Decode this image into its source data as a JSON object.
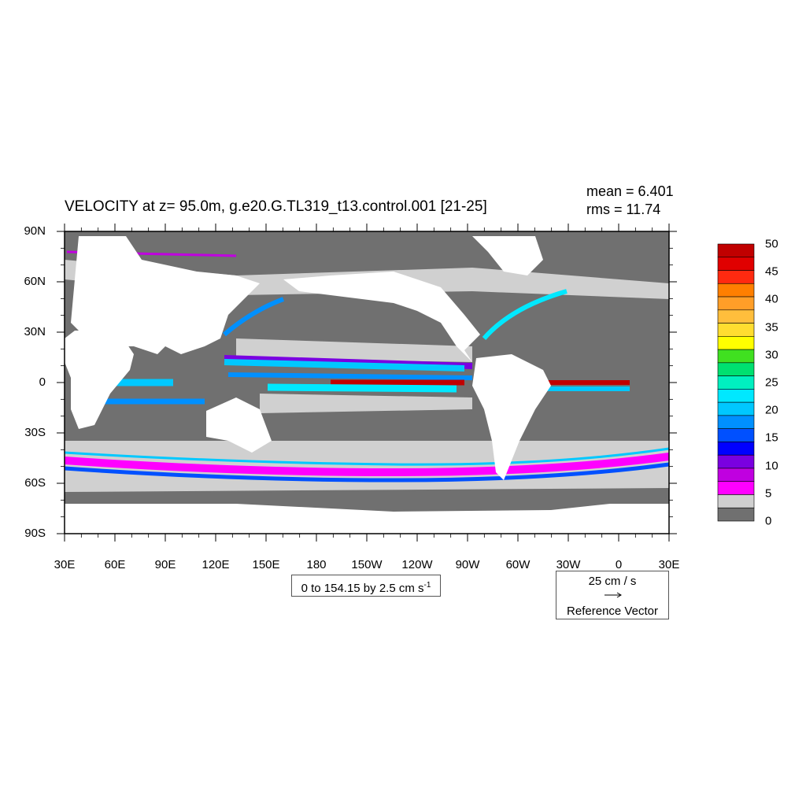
{
  "title": "VELOCITY at z=  95.0m, g.e20.G.TL319_t13.control.001 [21-25]",
  "stats": {
    "mean": "mean = 6.401",
    "rms": "rms = 11.74"
  },
  "axes": {
    "lat_labels": [
      "90N",
      "60N",
      "30N",
      "0",
      "30S",
      "60S",
      "90S"
    ],
    "lon_labels": [
      "30E",
      "60E",
      "90E",
      "120E",
      "150E",
      "180",
      "150W",
      "120W",
      "90W",
      "60W",
      "30W",
      "0",
      "30E"
    ]
  },
  "contour_range": {
    "text": "0 to 154.15 by 2.5 cm s",
    "unit_superscript": "-1"
  },
  "reference_vector": {
    "speed": "25 cm / s",
    "label": "Reference Vector"
  },
  "colorbar": {
    "labels": [
      "50",
      "45",
      "40",
      "35",
      "30",
      "25",
      "20",
      "15",
      "10",
      "5",
      "0"
    ],
    "colors": [
      "#c00000",
      "#e00000",
      "#ff2a10",
      "#ff7f00",
      "#ff9e28",
      "#ffbe3c",
      "#ffdd30",
      "#ffff00",
      "#40e020",
      "#00e070",
      "#00f0c0",
      "#00e8ff",
      "#00c8ff",
      "#0090ff",
      "#0050ff",
      "#0000ff",
      "#7a00e0",
      "#c000e0",
      "#ff00ff",
      "#d0d0d0",
      "#707070"
    ]
  },
  "map_colors": {
    "ocean_low": "#707070",
    "ocean_mid": "#d0d0d0",
    "land": "#ffffff"
  }
}
